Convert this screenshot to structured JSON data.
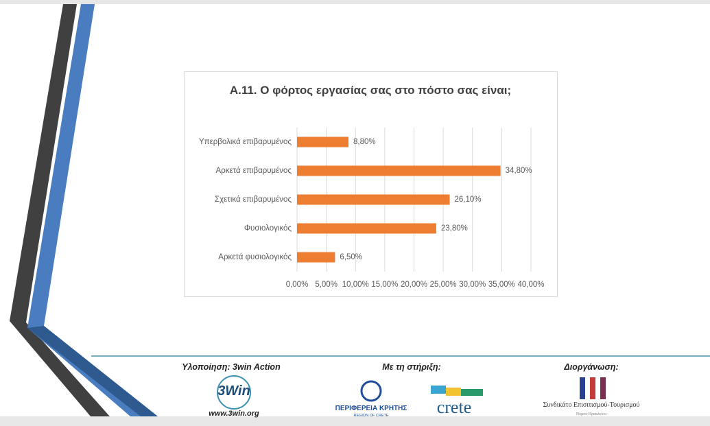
{
  "chart_data": {
    "type": "bar",
    "orientation": "horizontal",
    "title": "Α.11. Ο φόρτος εργασίας σας στο πόστο σας είναι;",
    "categories": [
      "Υπερβολικά επιβαρυμένος",
      "Αρκετά επιβαρυμένος",
      "Σχετικά επιβαρυμένος",
      "Φυσιολογικός",
      "Αρκετά φυσιολογικός"
    ],
    "values": [
      8.8,
      34.8,
      26.1,
      23.8,
      6.5
    ],
    "value_labels": [
      "8,80%",
      "34,80%",
      "26,10%",
      "23,80%",
      "6,50%"
    ],
    "color": "#ed7d31",
    "xlim": [
      0,
      40
    ],
    "xticks": [
      {
        "value": 0,
        "label": "0,00%"
      },
      {
        "value": 5,
        "label": "5,00%"
      },
      {
        "value": 10,
        "label": "10,00%"
      },
      {
        "value": 15,
        "label": "15,00%"
      },
      {
        "value": 20,
        "label": "20,00%"
      },
      {
        "value": 25,
        "label": "25,00%"
      },
      {
        "value": 30,
        "label": "30,00%"
      },
      {
        "value": 35,
        "label": "35,00%"
      },
      {
        "value": 40,
        "label": "40,00%"
      }
    ],
    "grid": true
  },
  "footer": {
    "implementation": "Υλοποίηση: 3win Action",
    "support": "Με τη στήριξη:",
    "organizer": "Διοργάνωση:",
    "win_logo": "3Win",
    "win_url": "www.3win.org",
    "region": "ΠΕΡΙΦΕΡΕΙΑ ΚΡΗΤΗΣ",
    "region_en": "REGION OF CRETE",
    "crete": "crete",
    "union": "Συνδικάτο Επισιτισμού-Τουρισμού",
    "union_sub": "Νομού Ηρακλείου"
  }
}
